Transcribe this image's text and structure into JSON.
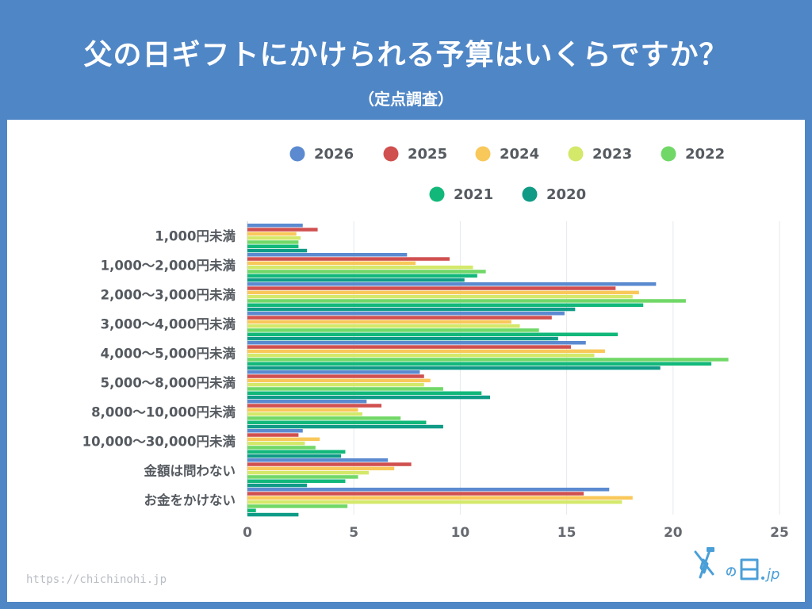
{
  "header": {
    "title": "父の日ギフトにかけられる予算はいくらですか？",
    "subtitle": "（定点調査）"
  },
  "footer": {
    "url": "https://chichinohi.jp",
    "logo_text": "父の日.jp"
  },
  "colors": {
    "background": "#4f86c6",
    "panel": "#ffffff",
    "logo": "#4a9fd8"
  },
  "chart_data": {
    "type": "bar",
    "orientation": "horizontal",
    "title": "父の日ギフトにかけられる予算はいくらですか？",
    "subtitle": "（定点調査）",
    "categories": [
      "1,000円未満",
      "1,000～2,000円未満",
      "2,000～3,000円未満",
      "3,000～4,000円未満",
      "4,000～5,000円未満",
      "5,000～8,000円未満",
      "8,000～10,000円未満",
      "10,000～30,000円未満",
      "金額は問わない",
      "お金をかけない"
    ],
    "series": [
      {
        "name": "2026",
        "color": "#5b8ad0",
        "values": [
          2.6,
          7.5,
          19.2,
          14.9,
          15.9,
          8.1,
          5.6,
          2.6,
          6.6,
          17.0
        ]
      },
      {
        "name": "2025",
        "color": "#d0504f",
        "values": [
          3.3,
          9.5,
          17.3,
          14.3,
          15.2,
          8.3,
          6.3,
          2.4,
          7.7,
          15.8
        ]
      },
      {
        "name": "2024",
        "color": "#f9c85a",
        "values": [
          2.3,
          7.9,
          18.4,
          12.4,
          16.8,
          8.6,
          5.2,
          3.4,
          6.9,
          18.1
        ]
      },
      {
        "name": "2023",
        "color": "#d4e86a",
        "values": [
          2.5,
          10.6,
          18.1,
          12.8,
          16.3,
          8.3,
          5.4,
          2.7,
          5.7,
          17.6
        ]
      },
      {
        "name": "2022",
        "color": "#71d868",
        "values": [
          2.4,
          11.2,
          20.6,
          13.7,
          22.6,
          9.2,
          7.2,
          3.2,
          5.2,
          4.7
        ]
      },
      {
        "name": "2021",
        "color": "#12b87a",
        "values": [
          2.4,
          10.8,
          18.6,
          17.4,
          21.8,
          11.0,
          8.4,
          4.6,
          4.6,
          0.4
        ]
      },
      {
        "name": "2020",
        "color": "#0f9b86",
        "values": [
          2.8,
          10.2,
          15.4,
          14.6,
          19.4,
          11.4,
          9.2,
          4.4,
          2.8,
          2.4
        ]
      }
    ],
    "xlim": [
      0,
      25
    ],
    "xticks": [
      0,
      5,
      10,
      15,
      20,
      25
    ],
    "grid": true,
    "legend_position": "top"
  }
}
